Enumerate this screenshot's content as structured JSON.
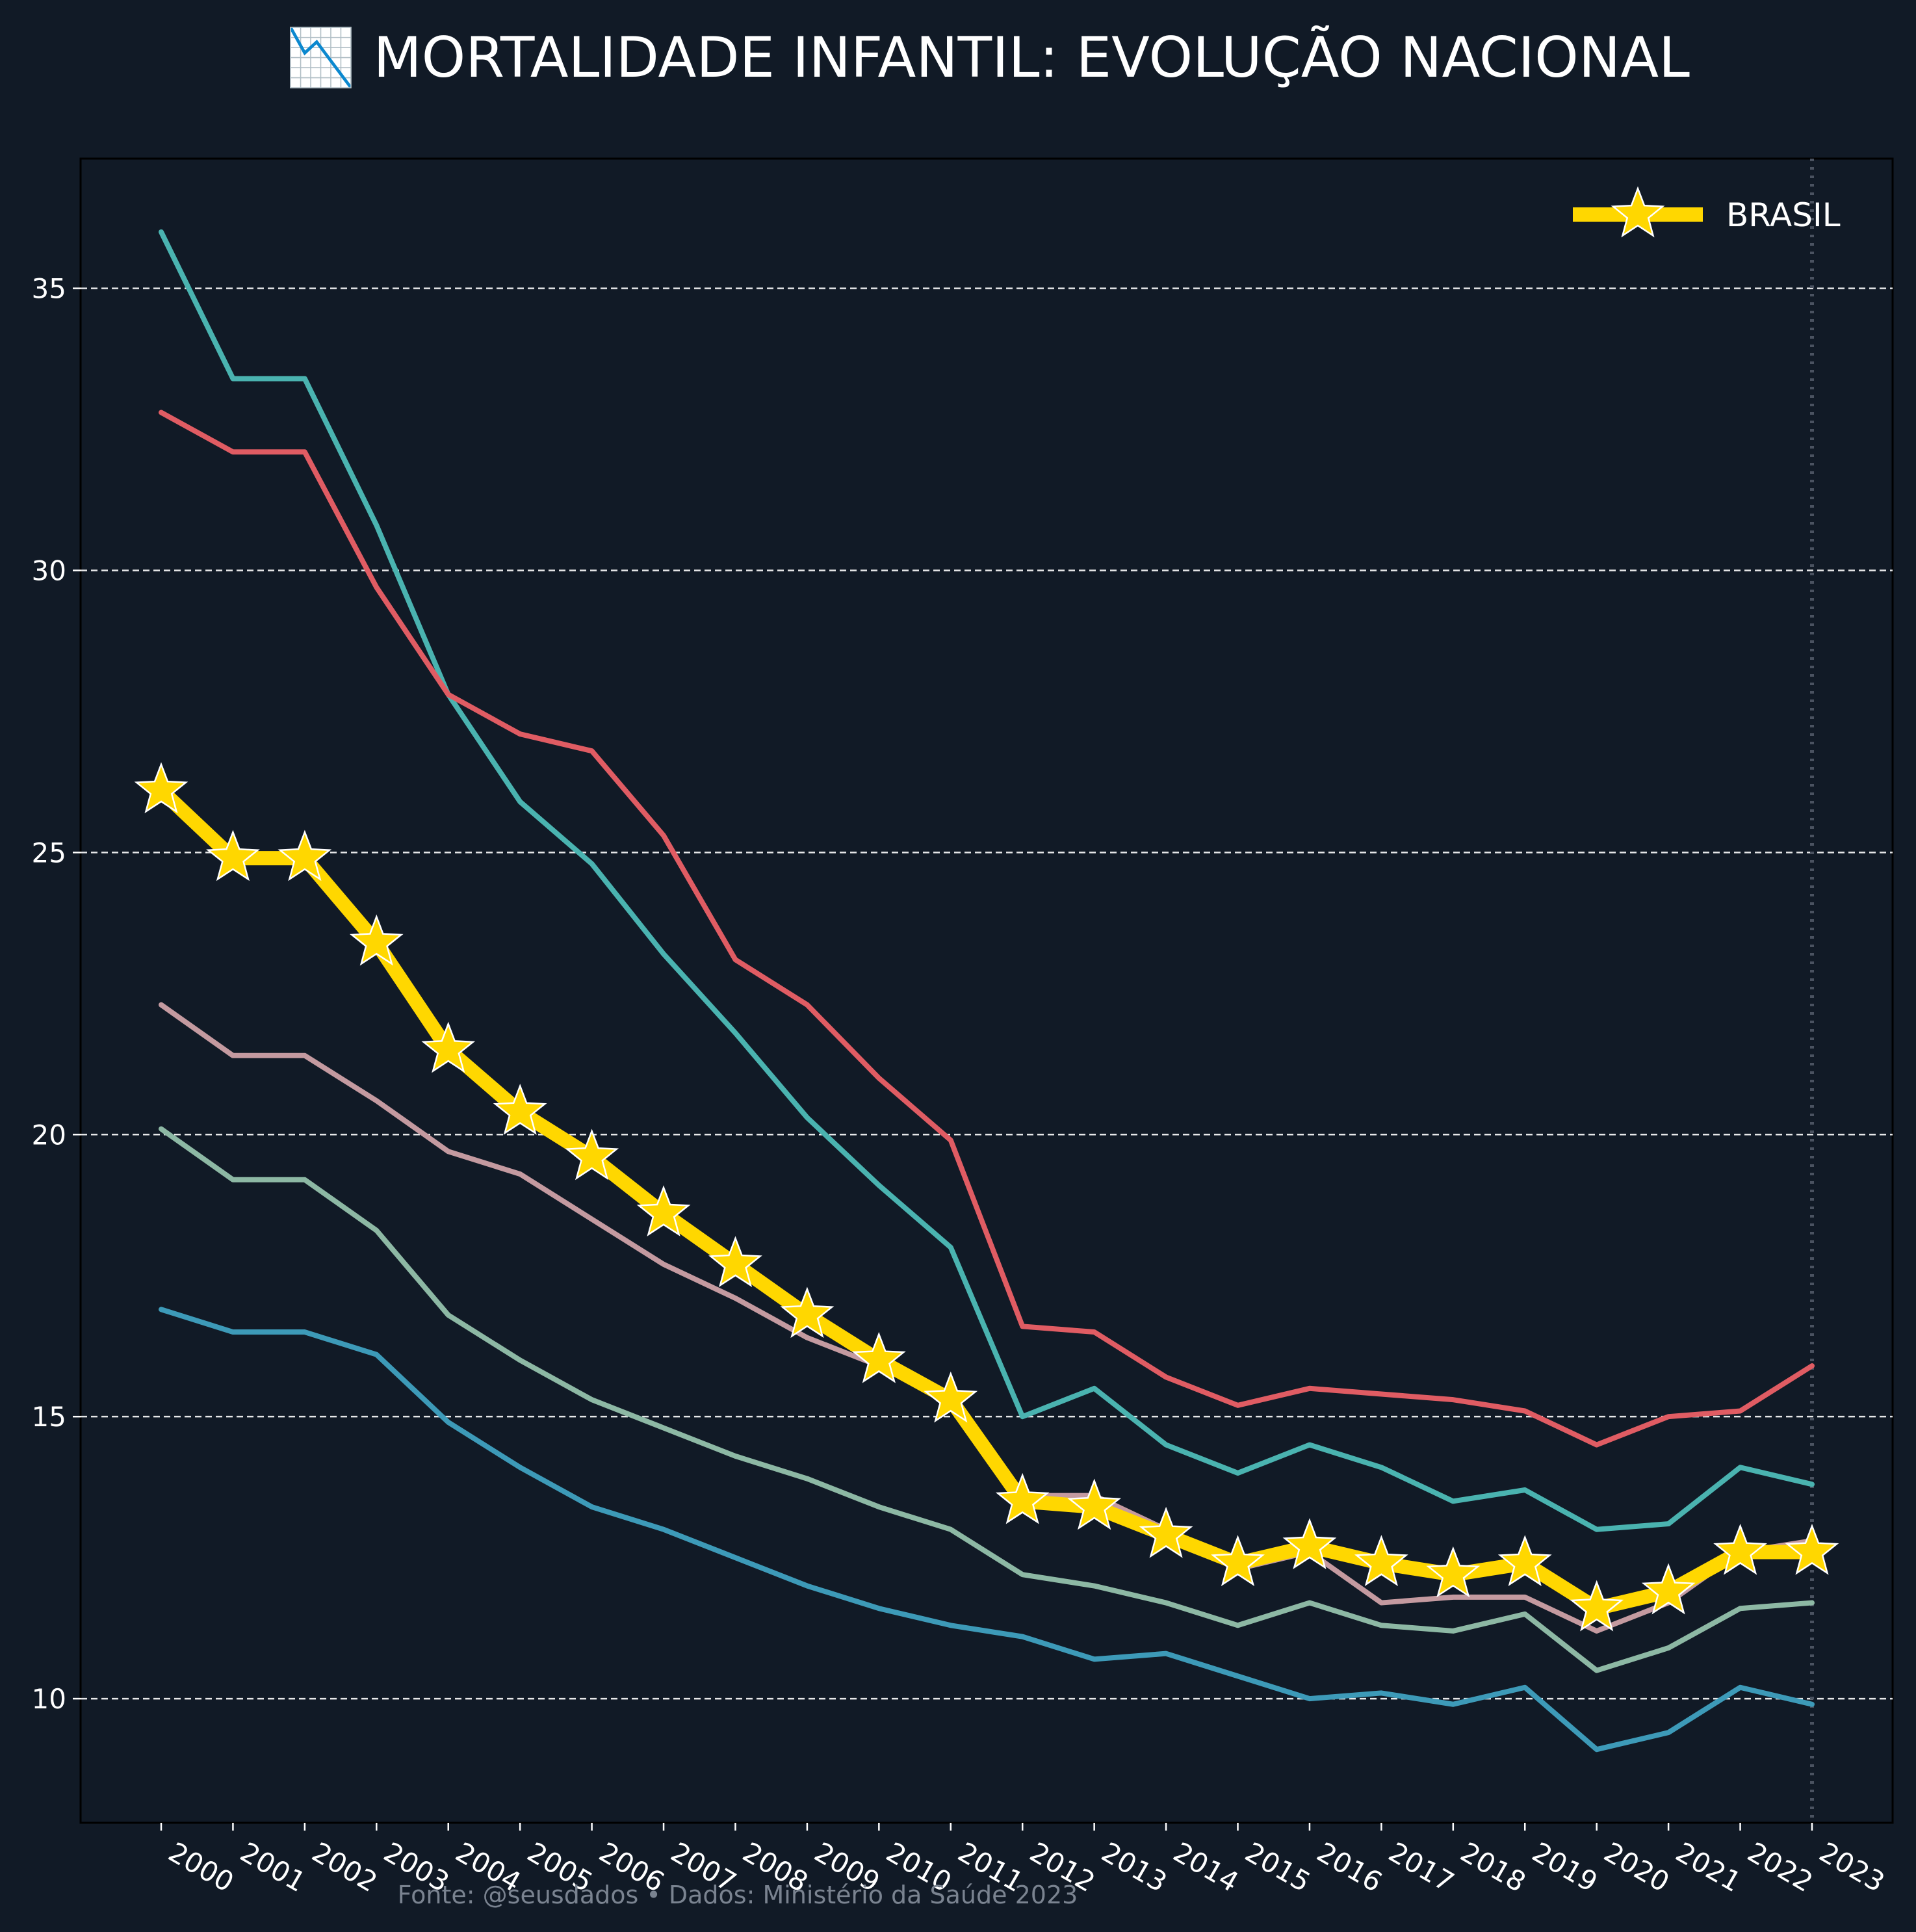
{
  "chart_data": {
    "type": "line",
    "title": "📉 MORTALIDADE INFANTIL: EVOLUÇÃO NACIONAL",
    "footer": "Fonte: @seusdados • Dados: Ministério da Saúde 2023",
    "xlabel": "",
    "ylabel": "",
    "ylim": [
      7.8,
      37.3
    ],
    "yticks": [
      10,
      15,
      20,
      25,
      30,
      35
    ],
    "grid": "horizontal dashed",
    "legend_placement": "top-right",
    "highlight_year": "2023",
    "x": [
      "2000",
      "2001",
      "2002",
      "2003",
      "2004",
      "2005",
      "2006",
      "2007",
      "2008",
      "2009",
      "2010",
      "2011",
      "2012",
      "2013",
      "2014",
      "2015",
      "2016",
      "2017",
      "2018",
      "2019",
      "2020",
      "2021",
      "2022",
      "2023"
    ],
    "series": [
      {
        "color": "#4ab3b0",
        "values": [
          36.0,
          33.4,
          33.4,
          30.8,
          27.8,
          25.9,
          24.8,
          23.2,
          21.8,
          20.3,
          19.1,
          18.0,
          15.0,
          15.5,
          14.5,
          14.0,
          14.5,
          14.1,
          13.5,
          13.7,
          13.0,
          13.1,
          14.1,
          13.8
        ]
      },
      {
        "color": "#e05c63",
        "values": [
          32.8,
          32.1,
          32.1,
          29.7,
          27.8,
          27.1,
          26.8,
          25.3,
          23.1,
          22.3,
          21.0,
          19.9,
          16.6,
          16.5,
          15.7,
          15.2,
          15.5,
          15.4,
          15.3,
          15.1,
          14.5,
          15.0,
          15.1,
          15.9
        ]
      },
      {
        "color": "#c49aa0",
        "values": [
          22.3,
          21.4,
          21.4,
          20.6,
          19.7,
          19.3,
          18.5,
          17.7,
          17.1,
          16.4,
          15.9,
          15.4,
          13.6,
          13.6,
          13.0,
          12.3,
          12.6,
          11.7,
          11.8,
          11.8,
          11.2,
          11.7,
          12.6,
          12.8
        ]
      },
      {
        "color": "#8db8a4",
        "values": [
          20.1,
          19.2,
          19.2,
          18.3,
          16.8,
          16.0,
          15.3,
          14.8,
          14.3,
          13.9,
          13.4,
          13.0,
          12.2,
          12.0,
          11.7,
          11.3,
          11.7,
          11.3,
          11.2,
          11.5,
          10.5,
          10.9,
          11.6,
          11.7
        ]
      },
      {
        "color": "#3d9ab8",
        "values": [
          16.9,
          16.5,
          16.5,
          16.1,
          14.9,
          14.1,
          13.4,
          13.0,
          12.5,
          12.0,
          11.6,
          11.3,
          11.1,
          10.7,
          10.8,
          10.4,
          10.0,
          10.1,
          9.9,
          10.2,
          9.1,
          9.4,
          10.2,
          9.9
        ]
      },
      {
        "name": "BRASIL",
        "color": "#ffd700",
        "marker": "star",
        "values": [
          26.1,
          24.9,
          24.9,
          23.4,
          21.5,
          20.4,
          19.6,
          18.6,
          17.7,
          16.8,
          16.0,
          15.3,
          13.5,
          13.4,
          12.9,
          12.4,
          12.7,
          12.4,
          12.2,
          12.4,
          11.6,
          11.9,
          12.6,
          12.6
        ]
      }
    ]
  }
}
